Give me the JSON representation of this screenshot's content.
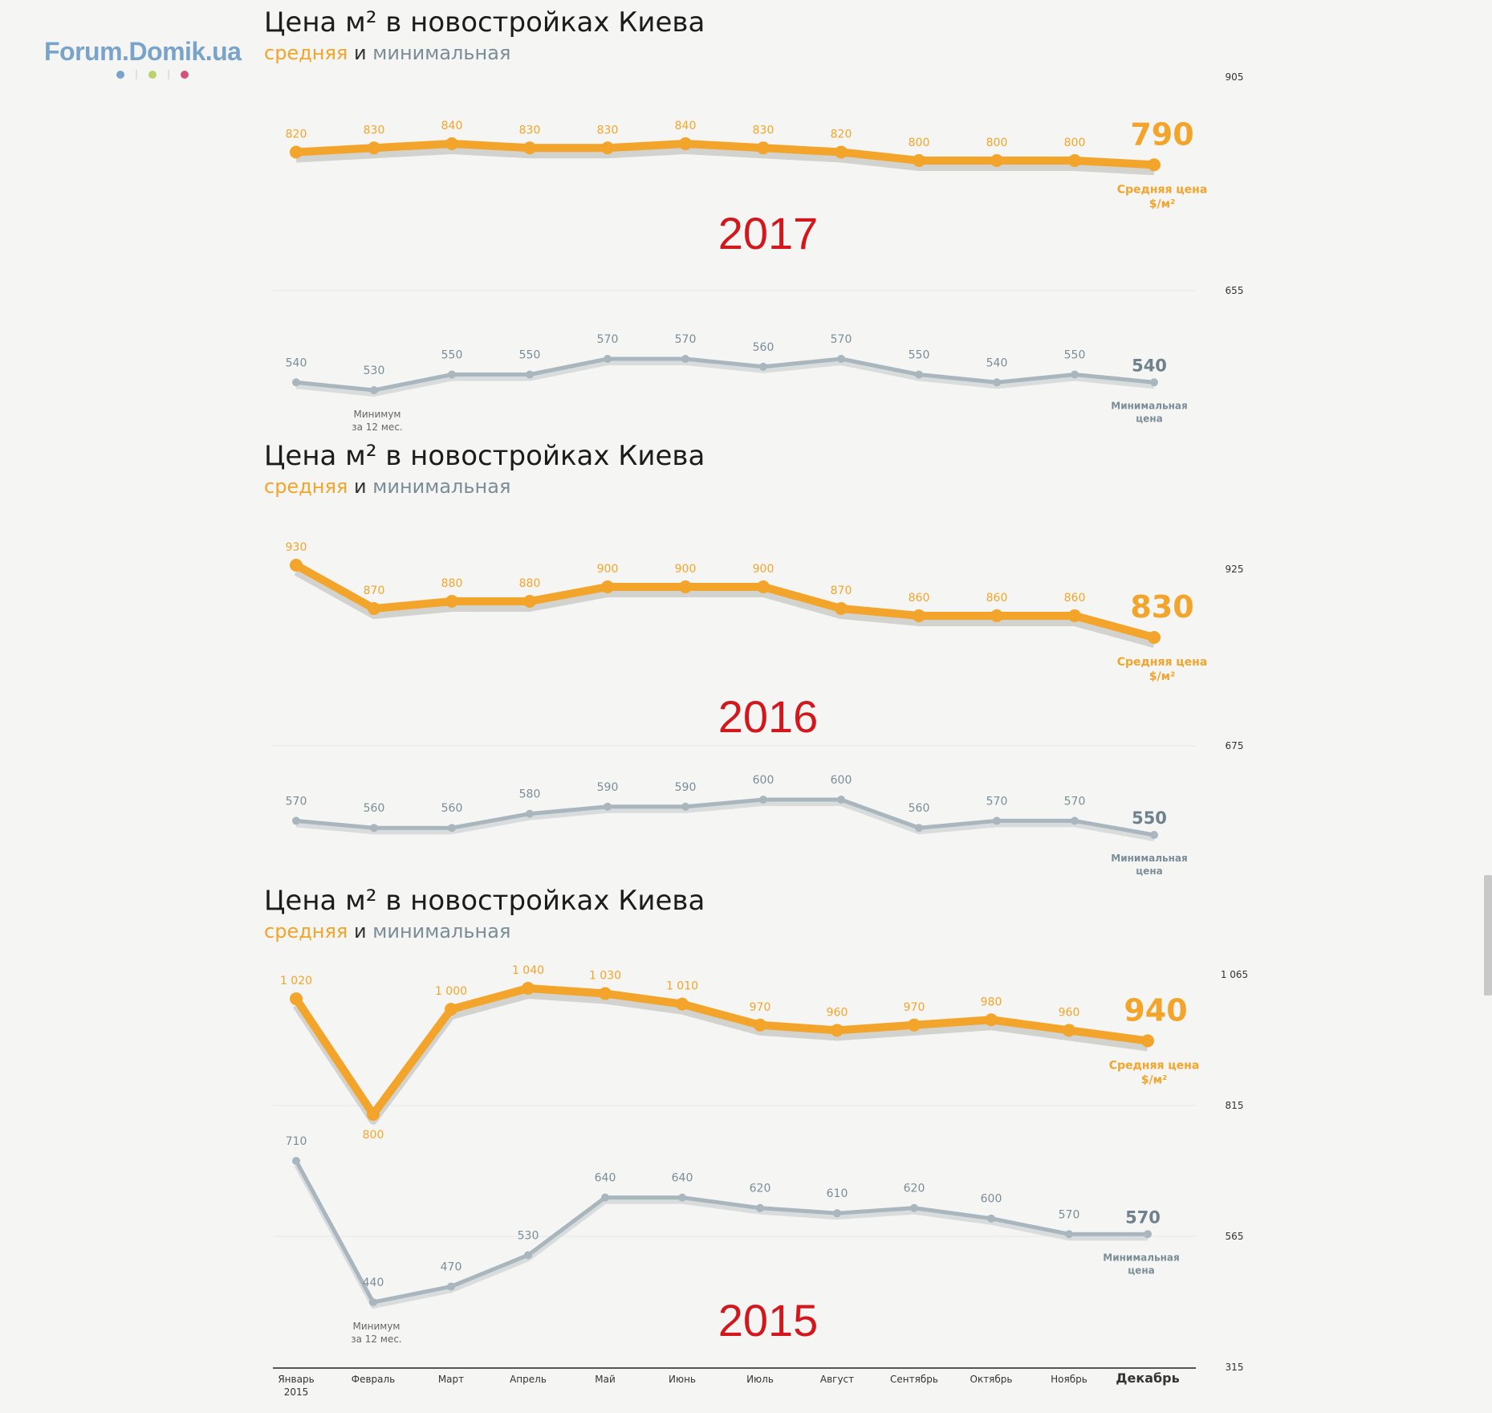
{
  "logo": {
    "text": "Forum.Domik.ua",
    "dot_colors": [
      "#7aa3c9",
      "#b9d36a",
      "#d1527a"
    ]
  },
  "colors": {
    "average": "#f3a52b",
    "minimum": "#a9b6bd",
    "minimum_text": "#7b8d96",
    "year": "#d3181d",
    "shadow": "#c9c9c5"
  },
  "panels": [
    {
      "title": "Цена м² в новостройках Киева",
      "subtitle": {
        "avg": "средняя",
        "and": "и",
        "min": "минимальная"
      },
      "year": "2017"
    },
    {
      "title": "Цена м² в новостройках Киева",
      "subtitle": {
        "avg": "средняя",
        "and": "и",
        "min": "минимальная"
      },
      "year": "2016"
    },
    {
      "title": "Цена м² в новостройках Киева",
      "subtitle": {
        "avg": "средняя",
        "and": "и",
        "min": "минимальная"
      },
      "year": "2015"
    }
  ],
  "chart_data": [
    {
      "type": "line",
      "year": "2017",
      "y_ticks": [
        "905",
        "655"
      ],
      "series": [
        {
          "name": "Средняя цена $/м²",
          "values": [
            820,
            830,
            840,
            830,
            830,
            840,
            830,
            820,
            800,
            800,
            800,
            790
          ],
          "labels": [
            "820",
            "830",
            "840",
            "830",
            "830",
            "840",
            "830",
            "820",
            "800",
            "800",
            "800",
            "790"
          ]
        },
        {
          "name": "Минимальная цена",
          "values": [
            540,
            530,
            550,
            550,
            570,
            570,
            560,
            570,
            550,
            540,
            550,
            540
          ],
          "labels": [
            "540",
            "530",
            "550",
            "550",
            "570",
            "570",
            "560",
            "570",
            "550",
            "540",
            "550",
            "540"
          ]
        }
      ],
      "end_label_avg": [
        "Средняя цена",
        "$/м²"
      ],
      "end_label_min": [
        "Минимальная",
        "цена"
      ],
      "min_note": [
        "Минимум",
        "за 12 мес."
      ]
    },
    {
      "type": "line",
      "year": "2016",
      "y_ticks": [
        "925",
        "675"
      ],
      "series": [
        {
          "name": "Средняя цена $/м²",
          "values": [
            930,
            870,
            880,
            880,
            900,
            900,
            900,
            870,
            860,
            860,
            860,
            830
          ],
          "labels": [
            "930",
            "870",
            "880",
            "880",
            "900",
            "900",
            "900",
            "870",
            "860",
            "860",
            "860",
            "830"
          ]
        },
        {
          "name": "Минимальная цена",
          "values": [
            570,
            560,
            560,
            580,
            590,
            590,
            600,
            600,
            560,
            570,
            570,
            550
          ],
          "labels": [
            "570",
            "560",
            "560",
            "580",
            "590",
            "590",
            "600",
            "600",
            "560",
            "570",
            "570",
            "550"
          ]
        }
      ],
      "end_label_avg": [
        "Средняя цена",
        "$/м²"
      ],
      "end_label_min": [
        "Минимальная",
        "цена"
      ]
    },
    {
      "type": "line",
      "year": "2015",
      "y_ticks": [
        "1 065",
        "815",
        "565",
        "315"
      ],
      "series": [
        {
          "name": "Средняя цена $/м²",
          "values": [
            1020,
            800,
            1000,
            1040,
            1030,
            1010,
            970,
            960,
            970,
            980,
            960,
            940
          ],
          "labels": [
            "1 020",
            "800",
            "1 000",
            "1 040",
            "1 030",
            "1 010",
            "970",
            "960",
            "970",
            "980",
            "960",
            "940"
          ]
        },
        {
          "name": "Минимальная цена",
          "values": [
            710,
            440,
            470,
            530,
            640,
            640,
            620,
            610,
            620,
            600,
            570,
            570
          ],
          "labels": [
            "710",
            "440",
            "470",
            "530",
            "640",
            "640",
            "620",
            "610",
            "620",
            "600",
            "570",
            "570"
          ]
        }
      ],
      "end_label_avg": [
        "Средняя цена",
        "$/м²"
      ],
      "end_label_min": [
        "Минимальная",
        "цена"
      ],
      "min_note": [
        "Минимум",
        "за 12 мес."
      ],
      "x_labels": [
        "Январь",
        "Февраль",
        "Март",
        "Апрель",
        "Май",
        "Июнь",
        "Июль",
        "Август",
        "Сентябрь",
        "Октябрь",
        "Ноябрь",
        "Декабрь"
      ],
      "x_first_sub": "2015"
    }
  ]
}
